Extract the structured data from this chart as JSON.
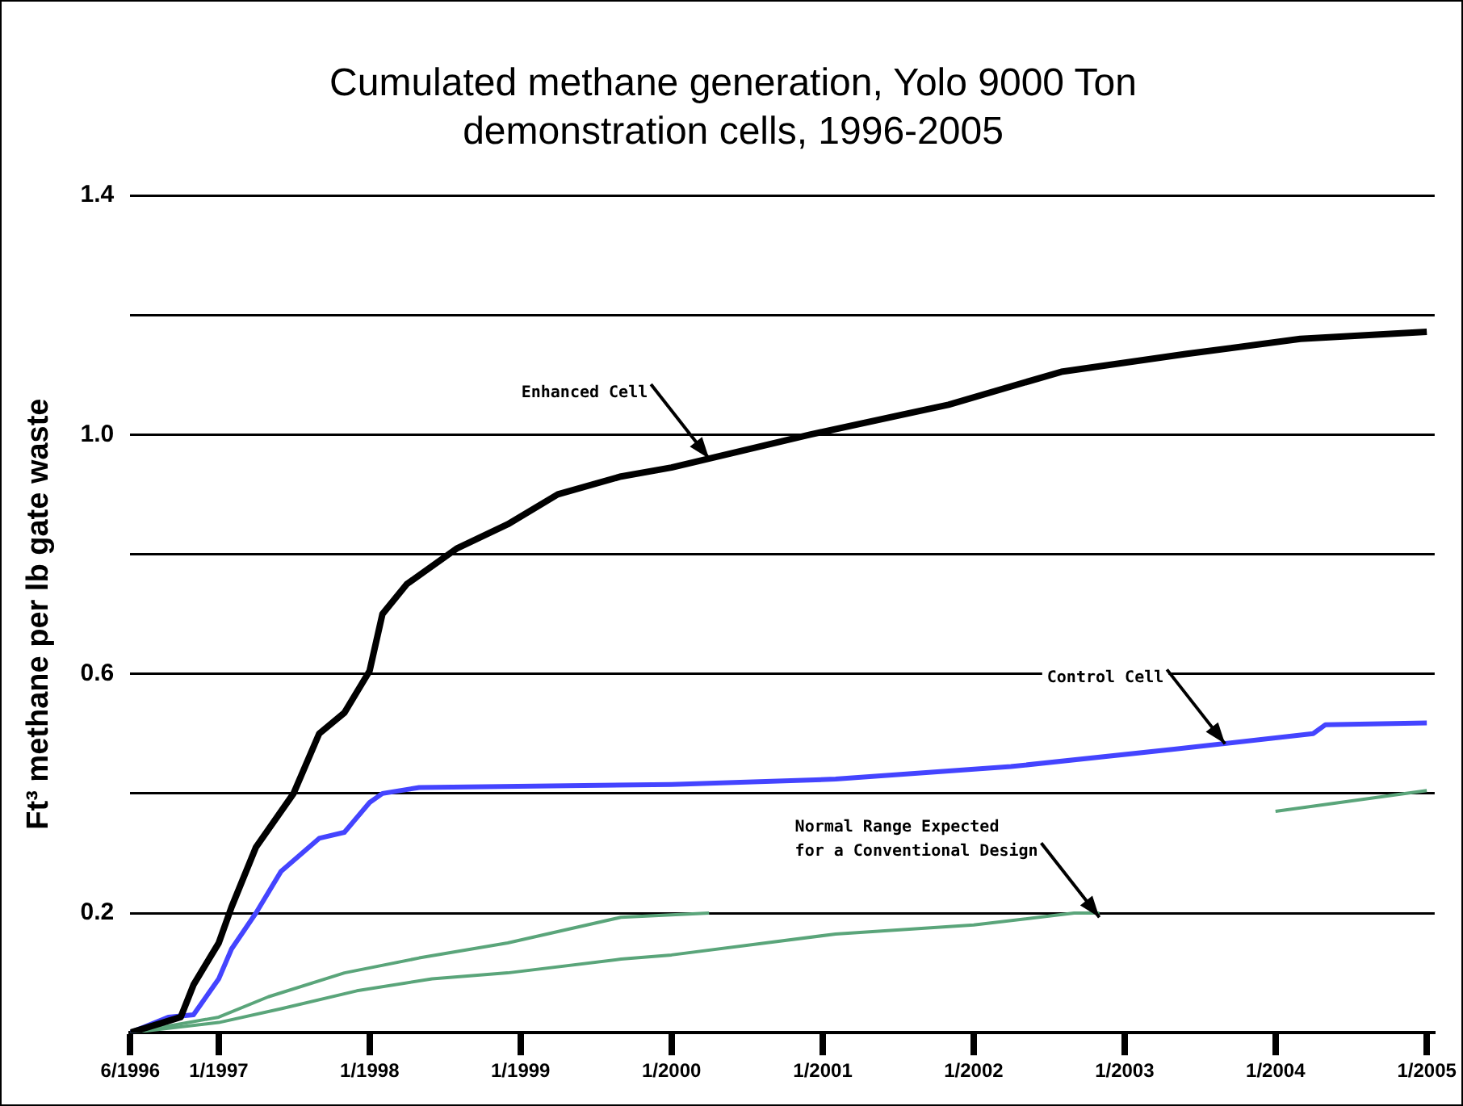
{
  "chart_data": {
    "type": "line",
    "title": "Cumulated methane generation, Yolo 9000 Ton demonstration cells, 1996-2005",
    "ylabel": "Ft³ methane per lb gate waste",
    "xlim": [
      "1996-06",
      "2005-01-20"
    ],
    "xticks": [
      {
        "value": "1996-06",
        "label": "6/1996"
      },
      {
        "value": "1997-01",
        "label": "1/1997"
      },
      {
        "value": "1998-01",
        "label": "1/1998"
      },
      {
        "value": "1999-01",
        "label": "1/1999"
      },
      {
        "value": "2000-01",
        "label": "1/2000"
      },
      {
        "value": "2001-01",
        "label": "1/2001"
      },
      {
        "value": "2002-01",
        "label": "1/2002"
      },
      {
        "value": "2003-01",
        "label": "1/2003"
      },
      {
        "value": "2004-01",
        "label": "1/2004"
      },
      {
        "value": "2005-01",
        "label": "1/2005"
      }
    ],
    "ylim": [
      0,
      1.4
    ],
    "yticks": [
      0.2,
      {
        "value": 0.4,
        "label": null
      },
      0.6,
      {
        "value": 0.8,
        "label": null
      },
      {
        "value": 1,
        "label": "1.0"
      },
      {
        "value": 1.2,
        "label": null
      },
      1.4
    ],
    "grid": "y",
    "legend": false,
    "line_style": "solid",
    "series": [
      {
        "color": "#000000",
        "x": [
          "1996-06",
          "1996-10",
          "1996-11",
          "1997-01",
          "1997-02",
          "1997-04",
          "1997-07",
          "1997-09",
          "1997-11",
          "1998-01",
          "1998-02",
          "1998-04",
          "1998-08",
          "1998-12",
          "1999-04",
          "1999-09",
          "2000-01",
          "2000-12",
          "2001-11",
          "2002-08",
          "2003-06",
          "2004-03",
          "2005-01"
        ],
        "values": [
          0,
          0.026,
          0.08,
          0.15,
          0.21,
          0.31,
          0.4,
          0.5,
          0.535,
          0.605,
          0.7,
          0.75,
          0.81,
          0.85,
          0.9,
          0.93,
          0.945,
          1.0,
          1.05,
          1.105,
          1.135,
          1.16,
          1.172
        ]
      },
      {
        "color": "#4444ff",
        "x": [
          "1996-06",
          "1996-09",
          "1996-11",
          "1997-01",
          "1997-02",
          "1997-04",
          "1997-06",
          "1997-09",
          "1997-11",
          "1998-01",
          "1998-02",
          "1998-05",
          "2000-01",
          "2001-02",
          "2002-04",
          "2003-05",
          "2004-04",
          "2004-05",
          "2005-01"
        ],
        "values": [
          0,
          0.026,
          0.03,
          0.09,
          0.14,
          0.2,
          0.27,
          0.325,
          0.335,
          0.385,
          0.4,
          0.41,
          0.415,
          0.424,
          0.445,
          0.474,
          0.5,
          0.515,
          0.518
        ]
      },
      {
        "color": "#5aa57a",
        "x": [
          "1996-06",
          "1997-01",
          "1997-05",
          "1997-11",
          "1998-05",
          "1998-12",
          "1999-09",
          "2000-04",
          "2002-01",
          "2004-01",
          "2005-01"
        ],
        "values": [
          0,
          0.026,
          0.06,
          0.1,
          0.125,
          0.15,
          0.193,
          0.2,
          null,
          0.37,
          0.405
        ]
      },
      {
        "color": "#5aa57a",
        "x": [
          "1996-06",
          "1997-01",
          "1997-06",
          "1997-12",
          "1998-06",
          "1998-12",
          "1999-09",
          "2000-01",
          "2001-02",
          "2002-01",
          "2002-09",
          "2002-11"
        ],
        "values": [
          0,
          0.017,
          0.04,
          0.07,
          0.09,
          0.1,
          0.123,
          0.13,
          0.165,
          0.18,
          0.2,
          0.2
        ]
      }
    ],
    "annotations": [
      {
        "text": "Enhanced Cell",
        "x": "2000-04",
        "y": 0.96
      },
      {
        "text": "Control Cell",
        "x": "2003-09",
        "y": 0.483
      },
      {
        "text": "Normal Range Expected\nfor a Conventional Design",
        "x": "2002-11",
        "y": 0.193
      }
    ]
  }
}
